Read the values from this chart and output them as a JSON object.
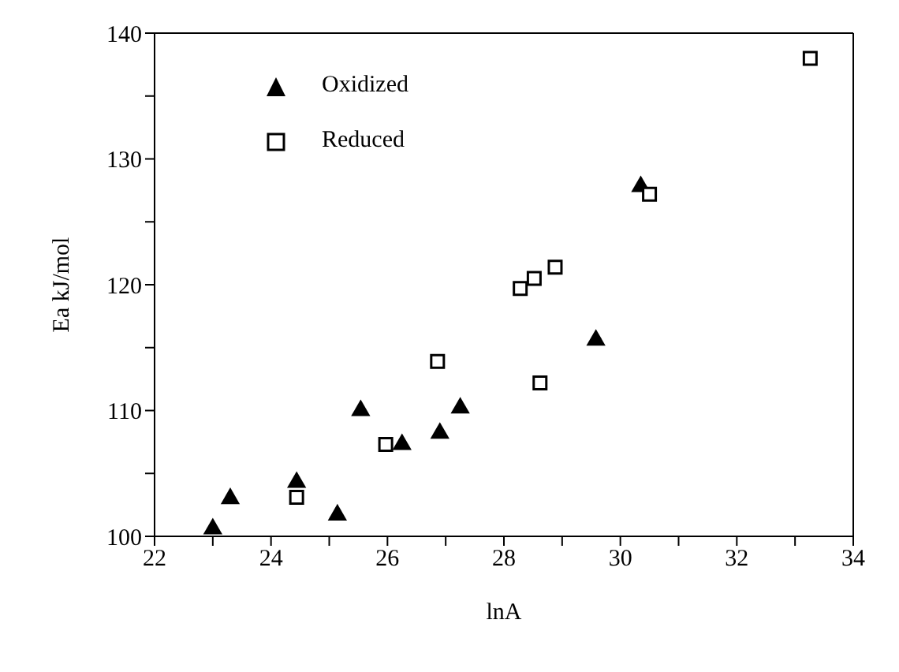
{
  "chart_data": {
    "type": "scatter",
    "xlabel": "lnA",
    "ylabel": "Ea kJ/mol",
    "xlim": [
      22,
      34
    ],
    "ylim": [
      100,
      140
    ],
    "xticks": [
      22,
      {
        "value": 23,
        "label": null
      },
      24,
      {
        "value": 25,
        "label": null
      },
      26,
      {
        "value": 27,
        "label": null
      },
      28,
      {
        "value": 29,
        "label": null
      },
      30,
      {
        "value": 31,
        "label": null
      },
      32,
      {
        "value": 33,
        "label": null
      },
      34
    ],
    "yticks": [
      100,
      {
        "value": 105,
        "label": null
      },
      110,
      {
        "value": 115,
        "label": null
      },
      120,
      {
        "value": 125,
        "label": null
      },
      130,
      {
        "value": 135,
        "label": null
      },
      140
    ],
    "legend": "top left",
    "series": [
      {
        "name": "Oxidized",
        "color": "#000000",
        "marker": "triangle",
        "x": [
          23.0,
          23.3,
          24.44,
          25.14,
          25.54,
          26.25,
          26.9,
          27.25,
          29.58,
          30.35
        ],
        "values": [
          100.6,
          103.0,
          104.3,
          101.7,
          110.0,
          107.3,
          108.2,
          110.2,
          115.6,
          127.8
        ]
      },
      {
        "name": "Reduced",
        "color": "#000000",
        "marker": "square",
        "x": [
          24.44,
          25.97,
          26.86,
          28.28,
          28.52,
          28.88,
          28.62,
          30.5,
          33.26
        ],
        "values": [
          103.1,
          107.3,
          113.9,
          119.7,
          120.5,
          121.4,
          112.2,
          127.2,
          138.0
        ]
      }
    ]
  }
}
